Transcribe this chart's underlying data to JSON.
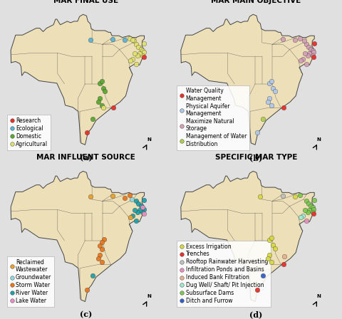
{
  "title_a": "MAR FINAL USE",
  "title_b": "MAR MAIN OBJECTIVE",
  "title_c": "MAR INFLUENT SOURCE",
  "title_d": "SPECIFIC MAR TYPE",
  "legend_a": {
    "Research": "#e8302a",
    "Ecological": "#5ab4d6",
    "Domestic": "#5ca832",
    "Agricultural": "#e0e070"
  },
  "legend_b": {
    "Water Quality\nManagement": "#e8302a",
    "Physical Aquifer\nManagement": "#b0c8e8",
    "Maximize Natural\nStorage": "#d4a0b5",
    "Management of Water\nDistribution": "#b0d050"
  },
  "legend_c": {
    "Reclaimed\nWastewater": "#e8a030",
    "Groundwater": "#90d8e0",
    "Storm Water": "#e87820",
    "River Water": "#20a0a8",
    "Lake Water": "#e890c0"
  },
  "legend_d": {
    "Excess Irrigation": "#d8d840",
    "Trenches": "#e8302a",
    "Rooftop Rainwater Harvesting": "#c0c0c0",
    "Infiltration Ponds and Basins": "#e890c0",
    "Induced Bank Filtration": "#e8b090",
    "Dug Well/ Shaft/ Pit Injection": "#a0e8d0",
    "Subsurface Dams": "#80c850",
    "Ditch and Furrow": "#3060c8"
  },
  "points_a": [
    {
      "lon": -50.5,
      "lat": -3.2,
      "color": "#5ab4d6"
    },
    {
      "lon": -44.0,
      "lat": -3.0,
      "color": "#5ab4d6"
    },
    {
      "lon": -39.0,
      "lat": -2.8,
      "color": "#e0e070"
    },
    {
      "lon": -37.8,
      "lat": -3.5,
      "color": "#e0e070"
    },
    {
      "lon": -37.2,
      "lat": -4.5,
      "color": "#e0e070"
    },
    {
      "lon": -36.5,
      "lat": -5.2,
      "color": "#e0e070"
    },
    {
      "lon": -35.8,
      "lat": -5.8,
      "color": "#e0e070"
    },
    {
      "lon": -35.3,
      "lat": -6.3,
      "color": "#e0e070"
    },
    {
      "lon": -34.9,
      "lat": -4.2,
      "color": "#e0e070"
    },
    {
      "lon": -35.0,
      "lat": -6.8,
      "color": "#e0e070"
    },
    {
      "lon": -35.3,
      "lat": -7.8,
      "color": "#e0e070"
    },
    {
      "lon": -36.2,
      "lat": -7.2,
      "color": "#e0e070"
    },
    {
      "lon": -36.8,
      "lat": -7.8,
      "color": "#e0e070"
    },
    {
      "lon": -37.6,
      "lat": -7.2,
      "color": "#e0e070"
    },
    {
      "lon": -38.2,
      "lat": -8.8,
      "color": "#e0e070"
    },
    {
      "lon": -38.8,
      "lat": -9.2,
      "color": "#e0e070"
    },
    {
      "lon": -37.2,
      "lat": -10.2,
      "color": "#e0e070"
    },
    {
      "lon": -35.0,
      "lat": -8.2,
      "color": "#e8302a"
    },
    {
      "lon": -47.8,
      "lat": -15.8,
      "color": "#5ca832"
    },
    {
      "lon": -47.2,
      "lat": -15.2,
      "color": "#5ca832"
    },
    {
      "lon": -46.8,
      "lat": -17.2,
      "color": "#5ca832"
    },
    {
      "lon": -46.2,
      "lat": -18.2,
      "color": "#5ca832"
    },
    {
      "lon": -47.8,
      "lat": -20.2,
      "color": "#5ca832"
    },
    {
      "lon": -48.2,
      "lat": -21.2,
      "color": "#5ca832"
    },
    {
      "lon": -47.2,
      "lat": -22.2,
      "color": "#5ca832"
    },
    {
      "lon": -46.8,
      "lat": -22.8,
      "color": "#e0e070"
    },
    {
      "lon": -43.8,
      "lat": -22.8,
      "color": "#e8302a"
    },
    {
      "lon": -49.8,
      "lat": -26.2,
      "color": "#5ca832"
    },
    {
      "lon": -51.5,
      "lat": -30.2,
      "color": "#e8302a"
    },
    {
      "lon": -40.5,
      "lat": -3.2,
      "color": "#5ab4d6"
    },
    {
      "lon": -38.2,
      "lat": -3.2,
      "color": "#e0e070"
    }
  ],
  "points_b": [
    {
      "lon": -44.0,
      "lat": -3.0,
      "color": "#d4a0b5"
    },
    {
      "lon": -39.0,
      "lat": -2.8,
      "color": "#d4a0b5"
    },
    {
      "lon": -37.2,
      "lat": -4.5,
      "color": "#d4a0b5"
    },
    {
      "lon": -36.5,
      "lat": -5.2,
      "color": "#d4a0b5"
    },
    {
      "lon": -35.8,
      "lat": -5.8,
      "color": "#d4a0b5"
    },
    {
      "lon": -35.3,
      "lat": -6.3,
      "color": "#d4a0b5"
    },
    {
      "lon": -34.9,
      "lat": -4.2,
      "color": "#e8302a"
    },
    {
      "lon": -35.0,
      "lat": -6.8,
      "color": "#d4a0b5"
    },
    {
      "lon": -35.3,
      "lat": -7.8,
      "color": "#d4a0b5"
    },
    {
      "lon": -36.2,
      "lat": -7.2,
      "color": "#d4a0b5"
    },
    {
      "lon": -36.8,
      "lat": -7.8,
      "color": "#d4a0b5"
    },
    {
      "lon": -37.6,
      "lat": -7.2,
      "color": "#d4a0b5"
    },
    {
      "lon": -38.2,
      "lat": -8.8,
      "color": "#d4a0b5"
    },
    {
      "lon": -38.8,
      "lat": -9.2,
      "color": "#d4a0b5"
    },
    {
      "lon": -37.2,
      "lat": -10.2,
      "color": "#d4a0b5"
    },
    {
      "lon": -35.0,
      "lat": -8.2,
      "color": "#e8302a"
    },
    {
      "lon": -47.8,
      "lat": -15.8,
      "color": "#b0c8e8"
    },
    {
      "lon": -47.2,
      "lat": -15.2,
      "color": "#b0c8e8"
    },
    {
      "lon": -46.8,
      "lat": -17.2,
      "color": "#b0c8e8"
    },
    {
      "lon": -46.2,
      "lat": -18.2,
      "color": "#b0c8e8"
    },
    {
      "lon": -47.8,
      "lat": -20.2,
      "color": "#b0c8e8"
    },
    {
      "lon": -48.2,
      "lat": -21.2,
      "color": "#b0c8e8"
    },
    {
      "lon": -47.2,
      "lat": -22.2,
      "color": "#b0c8e8"
    },
    {
      "lon": -43.8,
      "lat": -22.8,
      "color": "#e8302a"
    },
    {
      "lon": -51.5,
      "lat": -30.2,
      "color": "#b0c8e8"
    },
    {
      "lon": -40.5,
      "lat": -3.2,
      "color": "#d4a0b5"
    },
    {
      "lon": -37.8,
      "lat": -3.5,
      "color": "#d4a0b5"
    },
    {
      "lon": -49.8,
      "lat": -26.2,
      "color": "#b0d050"
    }
  ],
  "points_c": [
    {
      "lon": -50.5,
      "lat": -3.2,
      "color": "#e8a030"
    },
    {
      "lon": -44.0,
      "lat": -3.0,
      "color": "#e8a030"
    },
    {
      "lon": -40.5,
      "lat": -3.5,
      "color": "#e87820"
    },
    {
      "lon": -38.5,
      "lat": -4.0,
      "color": "#90d8e0"
    },
    {
      "lon": -39.0,
      "lat": -2.8,
      "color": "#e87820"
    },
    {
      "lon": -37.2,
      "lat": -4.5,
      "color": "#20a0a8"
    },
    {
      "lon": -36.5,
      "lat": -5.2,
      "color": "#20a0a8"
    },
    {
      "lon": -35.8,
      "lat": -5.8,
      "color": "#20a0a8"
    },
    {
      "lon": -34.9,
      "lat": -4.2,
      "color": "#20a0a8"
    },
    {
      "lon": -35.0,
      "lat": -6.8,
      "color": "#20a0a8"
    },
    {
      "lon": -35.3,
      "lat": -7.8,
      "color": "#20a0a8"
    },
    {
      "lon": -36.2,
      "lat": -7.2,
      "color": "#20a0a8"
    },
    {
      "lon": -36.8,
      "lat": -7.8,
      "color": "#20a0a8"
    },
    {
      "lon": -37.6,
      "lat": -7.2,
      "color": "#20a0a8"
    },
    {
      "lon": -38.2,
      "lat": -8.8,
      "color": "#20a0a8"
    },
    {
      "lon": -38.8,
      "lat": -9.2,
      "color": "#e8a030"
    },
    {
      "lon": -37.2,
      "lat": -10.2,
      "color": "#20a0a8"
    },
    {
      "lon": -35.0,
      "lat": -8.2,
      "color": "#e890c0"
    },
    {
      "lon": -46.5,
      "lat": -15.5,
      "color": "#e87820"
    },
    {
      "lon": -47.2,
      "lat": -16.5,
      "color": "#e87820"
    },
    {
      "lon": -47.8,
      "lat": -17.5,
      "color": "#e87820"
    },
    {
      "lon": -47.2,
      "lat": -18.5,
      "color": "#e87820"
    },
    {
      "lon": -47.8,
      "lat": -20.2,
      "color": "#e87820"
    },
    {
      "lon": -48.2,
      "lat": -21.2,
      "color": "#e87820"
    },
    {
      "lon": -47.2,
      "lat": -22.2,
      "color": "#e87820"
    },
    {
      "lon": -49.8,
      "lat": -26.2,
      "color": "#20a0a8"
    },
    {
      "lon": -51.5,
      "lat": -30.2,
      "color": "#e87820"
    },
    {
      "lon": -35.3,
      "lat": -6.3,
      "color": "#e890c0"
    }
  ],
  "points_d": [
    {
      "lon": -50.5,
      "lat": -3.2,
      "color": "#d8d840"
    },
    {
      "lon": -44.0,
      "lat": -3.0,
      "color": "#c0c0c0"
    },
    {
      "lon": -39.0,
      "lat": -2.8,
      "color": "#80c850"
    },
    {
      "lon": -37.2,
      "lat": -4.5,
      "color": "#80c850"
    },
    {
      "lon": -36.5,
      "lat": -5.2,
      "color": "#80c850"
    },
    {
      "lon": -35.8,
      "lat": -5.8,
      "color": "#80c850"
    },
    {
      "lon": -35.3,
      "lat": -6.3,
      "color": "#80c850"
    },
    {
      "lon": -34.9,
      "lat": -4.2,
      "color": "#80c850"
    },
    {
      "lon": -35.0,
      "lat": -6.8,
      "color": "#80c850"
    },
    {
      "lon": -35.3,
      "lat": -7.8,
      "color": "#80c850"
    },
    {
      "lon": -36.2,
      "lat": -7.2,
      "color": "#80c850"
    },
    {
      "lon": -36.8,
      "lat": -7.8,
      "color": "#80c850"
    },
    {
      "lon": -37.6,
      "lat": -7.2,
      "color": "#80c850"
    },
    {
      "lon": -38.2,
      "lat": -8.8,
      "color": "#a0e8d0"
    },
    {
      "lon": -38.8,
      "lat": -9.2,
      "color": "#a0e8d0"
    },
    {
      "lon": -37.2,
      "lat": -10.2,
      "color": "#e890c0"
    },
    {
      "lon": -35.0,
      "lat": -8.2,
      "color": "#e8302a"
    },
    {
      "lon": -47.8,
      "lat": -15.8,
      "color": "#d8d840"
    },
    {
      "lon": -47.2,
      "lat": -15.2,
      "color": "#d8d840"
    },
    {
      "lon": -46.8,
      "lat": -17.2,
      "color": "#d8d840"
    },
    {
      "lon": -46.2,
      "lat": -18.2,
      "color": "#d8d840"
    },
    {
      "lon": -47.8,
      "lat": -20.2,
      "color": "#d8d840"
    },
    {
      "lon": -48.2,
      "lat": -21.2,
      "color": "#d8d840"
    },
    {
      "lon": -47.2,
      "lat": -22.2,
      "color": "#d8d840"
    },
    {
      "lon": -43.8,
      "lat": -22.8,
      "color": "#e8302a"
    },
    {
      "lon": -43.5,
      "lat": -20.5,
      "color": "#e8b090"
    },
    {
      "lon": -49.8,
      "lat": -26.2,
      "color": "#3060c8"
    },
    {
      "lon": -51.5,
      "lat": -30.2,
      "color": "#e8302a"
    },
    {
      "lon": -40.5,
      "lat": -3.2,
      "color": "#d8d840"
    }
  ],
  "map_bg": "#ede0b8",
  "ocean_color_inner": "#b8d0e0",
  "ocean_color_outer": "#90b8d0",
  "border_color": "#444444",
  "title_fontsize": 7.5,
  "legend_fontsize": 5.5,
  "point_size": 22,
  "fig_bg": "#e8e8e8"
}
